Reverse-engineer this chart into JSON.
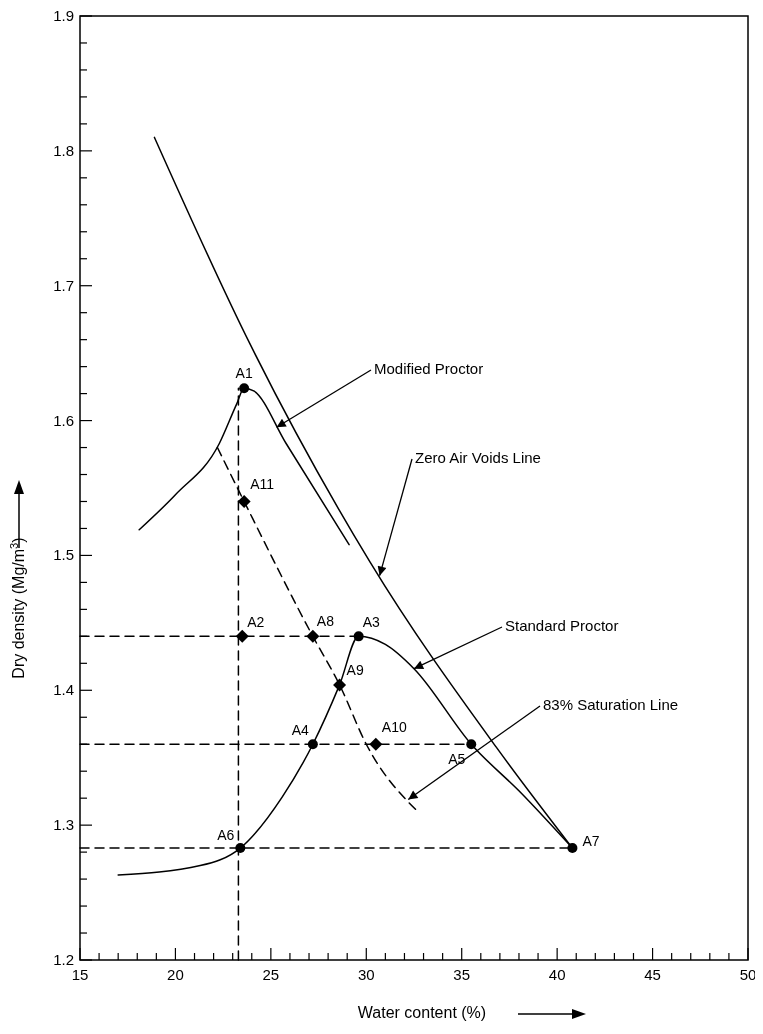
{
  "chart_data": {
    "type": "line",
    "xlabel": "Water content  (%)",
    "ylabel": "Dry density (Mg/m$^{3}$)",
    "xlim": [
      15,
      50
    ],
    "ylim": [
      1.2,
      1.9
    ],
    "xticks": [
      15,
      {
        "value": 16,
        "label": null
      },
      {
        "value": 17,
        "label": null
      },
      {
        "value": 18,
        "label": null
      },
      {
        "value": 19,
        "label": null
      },
      20,
      {
        "value": 21,
        "label": null
      },
      {
        "value": 22,
        "label": null
      },
      {
        "value": 23,
        "label": null
      },
      {
        "value": 24,
        "label": null
      },
      25,
      {
        "value": 26,
        "label": null
      },
      {
        "value": 27,
        "label": null
      },
      {
        "value": 28,
        "label": null
      },
      {
        "value": 29,
        "label": null
      },
      30,
      {
        "value": 31,
        "label": null
      },
      {
        "value": 32,
        "label": null
      },
      {
        "value": 33,
        "label": null
      },
      {
        "value": 34,
        "label": null
      },
      35,
      {
        "value": 36,
        "label": null
      },
      {
        "value": 37,
        "label": null
      },
      {
        "value": 38,
        "label": null
      },
      {
        "value": 39,
        "label": null
      },
      40,
      {
        "value": 41,
        "label": null
      },
      {
        "value": 42,
        "label": null
      },
      {
        "value": 43,
        "label": null
      },
      {
        "value": 44,
        "label": null
      },
      45,
      {
        "value": 46,
        "label": null
      },
      {
        "value": 47,
        "label": null
      },
      {
        "value": 48,
        "label": null
      },
      {
        "value": 49,
        "label": null
      },
      50
    ],
    "yticks": [
      1.2,
      {
        "value": 1.22,
        "label": null
      },
      {
        "value": 1.24,
        "label": null
      },
      {
        "value": 1.26,
        "label": null
      },
      {
        "value": 1.28,
        "label": null
      },
      1.3,
      {
        "value": 1.32,
        "label": null
      },
      {
        "value": 1.34,
        "label": null
      },
      {
        "value": 1.36,
        "label": null
      },
      {
        "value": 1.38,
        "label": null
      },
      1.4,
      {
        "value": 1.42,
        "label": null
      },
      {
        "value": 1.44,
        "label": null
      },
      {
        "value": 1.46,
        "label": null
      },
      {
        "value": 1.48,
        "label": null
      },
      1.5,
      {
        "value": 1.52,
        "label": null
      },
      {
        "value": 1.54,
        "label": null
      },
      {
        "value": 1.56,
        "label": null
      },
      {
        "value": 1.58,
        "label": null
      },
      1.6,
      {
        "value": 1.62,
        "label": null
      },
      {
        "value": 1.64,
        "label": null
      },
      {
        "value": 1.66,
        "label": null
      },
      {
        "value": 1.68,
        "label": null
      },
      1.7,
      {
        "value": 1.72,
        "label": null
      },
      {
        "value": 1.74,
        "label": null
      },
      {
        "value": 1.76,
        "label": null
      },
      {
        "value": 1.78,
        "label": null
      },
      1.8,
      {
        "value": 1.82,
        "label": null
      },
      {
        "value": 1.84,
        "label": null
      },
      {
        "value": 1.86,
        "label": null
      },
      {
        "value": 1.88,
        "label": null
      },
      1.9
    ],
    "series": [
      {
        "type": "line",
        "color": "#000000",
        "line_style": "solid",
        "x": [
          18.9,
          23.9,
          30.2,
          36.8,
          40.8
        ],
        "values": [
          1.81,
          1.657,
          1.495,
          1.358,
          1.283
        ]
      },
      {
        "type": "line",
        "color": "#000000",
        "line_style": "solid",
        "x": [
          18.1,
          20,
          22.3,
          23.2,
          23.6,
          24.1,
          25.8,
          29.1
        ],
        "values": [
          1.519,
          1.545,
          1.583,
          1.612,
          1.624,
          1.622,
          1.583,
          1.508
        ]
      },
      {
        "type": "line",
        "color": "#000000",
        "line_style": "solid",
        "x": [
          17,
          21.3,
          23.4,
          25.6,
          27.2,
          28.6,
          29.6,
          31,
          32.5,
          35.5,
          38.1,
          40.8
        ],
        "values": [
          1.263,
          1.27,
          1.283,
          1.321,
          1.36,
          1.404,
          1.44,
          1.434,
          1.416,
          1.36,
          1.324,
          1.283
        ]
      },
      {
        "type": "line",
        "color": "#000000",
        "line_style": "dashed",
        "x": [
          22.2,
          23.6,
          27.2,
          28.6,
          30,
          32.7
        ],
        "values": [
          1.58,
          1.54,
          1.44,
          1.404,
          1.36,
          1.31
        ]
      },
      {
        "type": "line",
        "color": "#000000",
        "line_style": "dashed",
        "x": [
          15,
          29.6
        ],
        "values": [
          1.44,
          1.44
        ]
      },
      {
        "type": "line",
        "color": "#000000",
        "line_style": "dashed",
        "x": [
          15,
          35.5
        ],
        "values": [
          1.36,
          1.36
        ]
      },
      {
        "type": "line",
        "color": "#000000",
        "line_style": "dashed",
        "x": [
          15,
          40.8
        ],
        "values": [
          1.283,
          1.283
        ]
      },
      {
        "type": "line",
        "color": "#000000",
        "line_style": "dashed",
        "x": [
          23.3,
          23.3
        ],
        "values": [
          1.2,
          1.624
        ]
      },
      {
        "type": "scatter",
        "color": "#000000",
        "marker": "circle",
        "x": [
          23.6,
          29.6,
          27.2,
          35.5,
          23.4,
          40.8
        ],
        "values": [
          1.624,
          1.44,
          1.36,
          1.36,
          1.283,
          1.283
        ]
      },
      {
        "type": "scatter",
        "color": "#000000",
        "marker": "diamond",
        "x": [
          23.5,
          27.2,
          28.6,
          30.5,
          23.6
        ],
        "values": [
          1.44,
          1.44,
          1.404,
          1.36,
          1.54
        ]
      }
    ],
    "annotations": [
      {
        "text": "A1",
        "x": 23.6,
        "y": 1.624
      },
      {
        "text": "A2",
        "x": 23.5,
        "y": 1.44
      },
      {
        "text": "A3",
        "x": 29.6,
        "y": 1.44
      },
      {
        "text": "A4",
        "x": 27.2,
        "y": 1.36
      },
      {
        "text": "A5",
        "x": 35.5,
        "y": 1.36
      },
      {
        "text": "A6",
        "x": 23.4,
        "y": 1.283
      },
      {
        "text": "A7",
        "x": 40.8,
        "y": 1.283
      },
      {
        "text": "A8",
        "x": 27.2,
        "y": 1.44
      },
      {
        "text": "A9",
        "x": 28.6,
        "y": 1.404
      },
      {
        "text": "A10",
        "x": 30.5,
        "y": 1.36
      },
      {
        "text": "A11",
        "x": 23.6,
        "y": 1.54
      },
      {
        "text": "Modified Proctor",
        "x": 25.3,
        "y": 1.595
      },
      {
        "text": "Zero Air Voids Line",
        "x": 30.7,
        "y": 1.485
      },
      {
        "text": "Standard Proctor",
        "x": 32.5,
        "y": 1.416
      },
      {
        "text": "83% Saturation Line",
        "x": 32.2,
        "y": 1.319
      }
    ]
  }
}
